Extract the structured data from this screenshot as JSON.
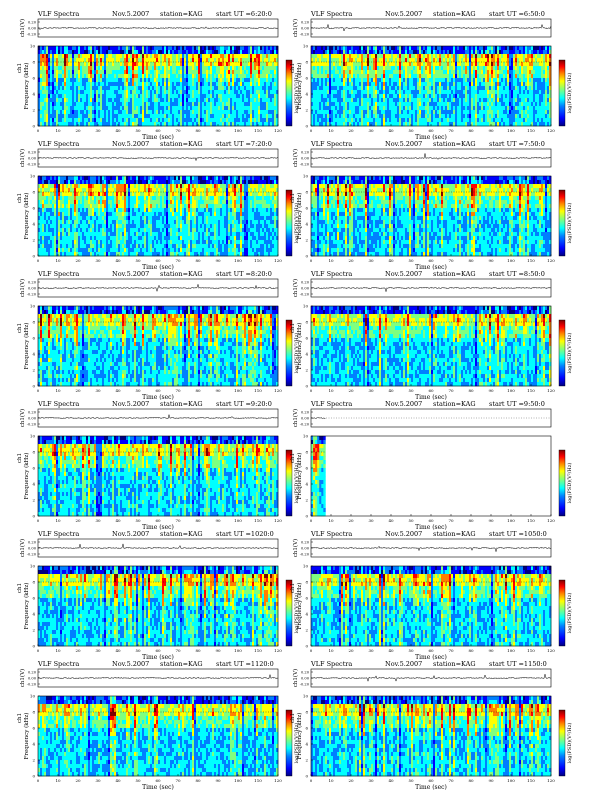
{
  "header": {
    "prefix": "VLF Spectra",
    "date": "Nov.5.2007",
    "station": "station=KAG",
    "start_label": "start  UT"
  },
  "labels": {
    "ch1": "ch1(V)",
    "ylabel": "Frequency  (kHz)",
    "ylabel_ch": "ch1",
    "xlabel": "Time  (sec)",
    "colorbar_label": "log(PSD)(V²/Hz)"
  },
  "ticks": {
    "amp": [
      "0.20",
      "0.00",
      "-0.20"
    ],
    "freq": [
      "0",
      "2",
      "4",
      "6",
      "8",
      "10"
    ],
    "time": [
      "0",
      "10",
      "20",
      "30",
      "40",
      "50",
      "60",
      "70",
      "80",
      "90",
      "100",
      "110",
      "120"
    ]
  },
  "chart_data": [
    {
      "type": "heatmap",
      "start_ut": "6:20:0",
      "xlim": [
        0,
        120
      ],
      "ylim": [
        0,
        10
      ],
      "coverage": 1.0
    },
    {
      "type": "heatmap",
      "start_ut": "6:50:0",
      "xlim": [
        0,
        120
      ],
      "ylim": [
        0,
        10
      ],
      "coverage": 1.0
    },
    {
      "type": "heatmap",
      "start_ut": "7:20:0",
      "xlim": [
        0,
        120
      ],
      "ylim": [
        0,
        10
      ],
      "coverage": 1.0
    },
    {
      "type": "heatmap",
      "start_ut": "7:50:0",
      "xlim": [
        0,
        120
      ],
      "ylim": [
        0,
        10
      ],
      "coverage": 1.0
    },
    {
      "type": "heatmap",
      "start_ut": "8:20:0",
      "xlim": [
        0,
        120
      ],
      "ylim": [
        0,
        10
      ],
      "coverage": 1.0
    },
    {
      "type": "heatmap",
      "start_ut": "8:50:0",
      "xlim": [
        0,
        120
      ],
      "ylim": [
        0,
        10
      ],
      "coverage": 1.0
    },
    {
      "type": "heatmap",
      "start_ut": "9:20:0",
      "xlim": [
        0,
        120
      ],
      "ylim": [
        0,
        10
      ],
      "coverage": 1.0
    },
    {
      "type": "heatmap",
      "start_ut": "9:50:0",
      "xlim": [
        0,
        120
      ],
      "ylim": [
        0,
        10
      ],
      "coverage": 0.06
    },
    {
      "type": "heatmap",
      "start_ut": "1020:0",
      "xlim": [
        0,
        120
      ],
      "ylim": [
        0,
        10
      ],
      "coverage": 1.0
    },
    {
      "type": "heatmap",
      "start_ut": "1050:0",
      "xlim": [
        0,
        120
      ],
      "ylim": [
        0,
        10
      ],
      "coverage": 1.0
    },
    {
      "type": "heatmap",
      "start_ut": "1120:0",
      "xlim": [
        0,
        120
      ],
      "ylim": [
        0,
        10
      ],
      "coverage": 1.0
    },
    {
      "type": "heatmap",
      "start_ut": "1150:0",
      "xlim": [
        0,
        120
      ],
      "ylim": [
        0,
        10
      ],
      "coverage": 1.0
    }
  ],
  "colors": {
    "colormap": [
      "#00007f",
      "#0000ff",
      "#007fff",
      "#00ffff",
      "#7fff7f",
      "#ffff00",
      "#ff7f00",
      "#ff0000",
      "#7f0000"
    ]
  }
}
